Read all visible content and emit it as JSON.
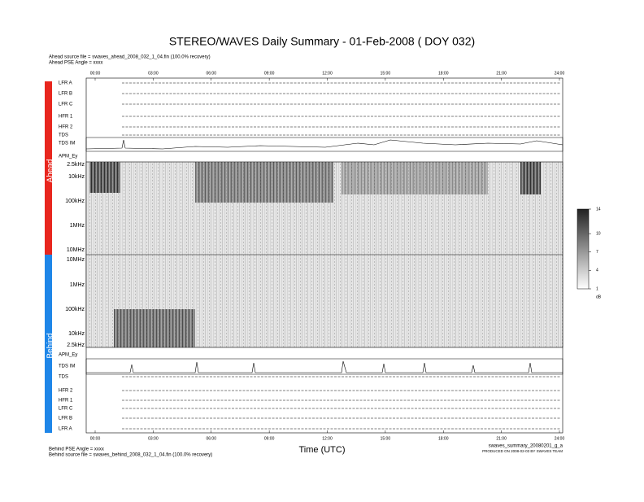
{
  "title": "STEREO/WAVES Daily Summary - 01-Feb-2008 ( DOY 032)",
  "ahead_info": [
    "Ahead source file = swaves_ahead_2008_032_1_04.fin (100.0% recovery)",
    "Ahead PSE Angle = xxxx"
  ],
  "time_ticks": [
    "00:00",
    "03:00",
    "06:00",
    "09:00",
    "12:00",
    "15:00",
    "18:00",
    "21:00",
    "24:00"
  ],
  "x_label": "Time (UTC)",
  "side_labels": {
    "ahead": "Ahead",
    "behind": "Behind"
  },
  "ahead_rows": [
    "LFR A",
    "LFR B",
    "LFR C",
    "HFR 1",
    "HFR 2",
    "TDS",
    "TDS IM",
    "APM_Ey"
  ],
  "ahead_freq": [
    "2.5kHz",
    "10kHz",
    "100kHz",
    "1MHz",
    "10MHz"
  ],
  "behind_freq": [
    "10MHz",
    "1MHz",
    "100kHz",
    "10kHz",
    "2.5kHz"
  ],
  "behind_rows": [
    "APM_Ey",
    "TDS IM",
    "TDS",
    "HFR 2",
    "HFR 1",
    "LFR C",
    "LFR B",
    "LFR A"
  ],
  "colorbar": {
    "lim": [
      1,
      14
    ],
    "ticks": [
      14,
      10,
      7,
      4,
      1
    ],
    "unit": "dB"
  },
  "footer_left": [
    "Behind PSE Angle = xxxx",
    "Behind source file = swaves_behind_2008_032_1_04.fin (100.0% recovery)"
  ],
  "footer_right": [
    "swaves_summary_20080201_g_a",
    "PRODUCED ON 2008-02-03 BY SWAVES TEAM"
  ]
}
